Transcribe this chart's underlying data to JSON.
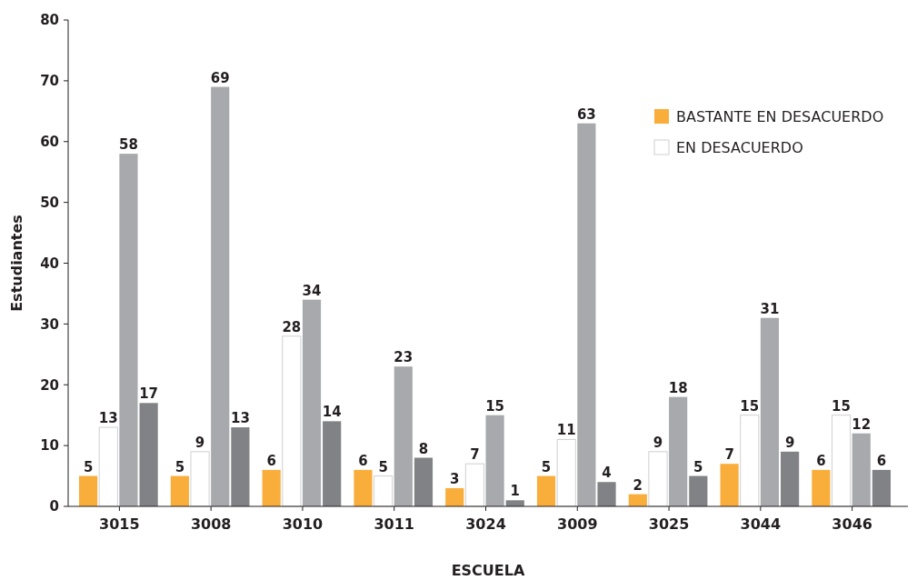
{
  "chart_data": {
    "type": "bar",
    "xlabel": "ESCUELA",
    "ylabel": "Estudiantes",
    "categories": [
      "3015",
      "3008",
      "3010",
      "3011",
      "3024",
      "3009",
      "3025",
      "3044",
      "3046"
    ],
    "series": [
      {
        "name": "BASTANTE EN DESACUERDO",
        "color": "#f9ae3c",
        "values": [
          5,
          5,
          6,
          6,
          3,
          5,
          2,
          7,
          6
        ]
      },
      {
        "name": "EN DESACUERDO",
        "color": "#ffffff",
        "values": [
          13,
          9,
          28,
          5,
          7,
          11,
          9,
          15,
          15
        ]
      },
      {
        "color": "#a7a9ac",
        "values": [
          58,
          69,
          34,
          23,
          15,
          63,
          18,
          31,
          12
        ]
      },
      {
        "color": "#808285",
        "values": [
          17,
          13,
          14,
          8,
          1,
          4,
          5,
          9,
          6
        ]
      }
    ],
    "ylim": [
      0,
      80
    ],
    "yticks": [
      0,
      10,
      20,
      30,
      40,
      50,
      60,
      70,
      80
    ],
    "data_labels": true,
    "legend": "top right",
    "grid": false
  }
}
